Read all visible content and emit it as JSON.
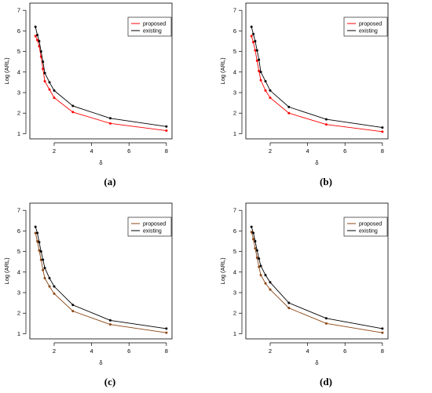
{
  "chart_data": [
    {
      "type": "line",
      "caption": "(a)",
      "xlabel": "δ",
      "ylabel": "Log (ARL)",
      "x_ticks": [
        2,
        4,
        6,
        8
      ],
      "y_ticks": [
        1,
        2,
        3,
        4,
        5,
        6,
        7
      ],
      "xlim": [
        0.7,
        8.3
      ],
      "ylim": [
        0.75,
        7.35
      ],
      "legend": "top-right",
      "series": [
        {
          "name": "proposed",
          "color": "#ff0000",
          "x": [
            1.0,
            1.1,
            1.2,
            1.3,
            1.4,
            1.5,
            1.75,
            2.0,
            3.0,
            5.0,
            8.0
          ],
          "y": [
            5.75,
            5.55,
            5.25,
            4.75,
            4.15,
            3.55,
            3.15,
            2.75,
            2.05,
            1.5,
            1.15
          ]
        },
        {
          "name": "existing",
          "color": "#000000",
          "x": [
            1.0,
            1.1,
            1.2,
            1.3,
            1.4,
            1.5,
            1.75,
            2.0,
            3.0,
            5.0,
            8.0
          ],
          "y": [
            6.2,
            5.8,
            5.5,
            5.0,
            4.5,
            3.95,
            3.5,
            3.1,
            2.35,
            1.75,
            1.35
          ]
        }
      ]
    },
    {
      "type": "line",
      "caption": "(b)",
      "xlabel": "δ",
      "ylabel": "Log (ARL)",
      "x_ticks": [
        2,
        4,
        6,
        8
      ],
      "y_ticks": [
        1,
        2,
        3,
        4,
        5,
        6,
        7
      ],
      "xlim": [
        0.7,
        8.3
      ],
      "ylim": [
        0.75,
        7.35
      ],
      "legend": "top-right",
      "series": [
        {
          "name": "proposed",
          "color": "#ff0000",
          "x": [
            1.0,
            1.1,
            1.2,
            1.3,
            1.4,
            1.5,
            1.75,
            2.0,
            3.0,
            5.0,
            8.0
          ],
          "y": [
            5.75,
            5.45,
            5.05,
            4.55,
            4.05,
            3.6,
            3.1,
            2.75,
            2.0,
            1.45,
            1.1
          ]
        },
        {
          "name": "existing",
          "color": "#000000",
          "x": [
            1.0,
            1.1,
            1.2,
            1.3,
            1.4,
            1.5,
            1.75,
            2.0,
            3.0,
            5.0,
            8.0
          ],
          "y": [
            6.2,
            5.85,
            5.5,
            5.05,
            4.6,
            4.0,
            3.55,
            3.1,
            2.3,
            1.7,
            1.3
          ]
        }
      ]
    },
    {
      "type": "line",
      "caption": "(c)",
      "xlabel": "δ",
      "ylabel": "Log (ARL)",
      "x_ticks": [
        2,
        4,
        6,
        8
      ],
      "y_ticks": [
        1,
        2,
        3,
        4,
        5,
        6,
        7
      ],
      "xlim": [
        0.7,
        8.3
      ],
      "ylim": [
        0.75,
        7.35
      ],
      "legend": "top-right",
      "series": [
        {
          "name": "proposed",
          "color": "#8b4513",
          "x": [
            1.0,
            1.1,
            1.2,
            1.3,
            1.4,
            1.5,
            1.75,
            2.0,
            3.0,
            5.0,
            8.0
          ],
          "y": [
            5.9,
            5.5,
            5.05,
            4.6,
            4.1,
            3.7,
            3.3,
            2.95,
            2.1,
            1.45,
            1.05
          ]
        },
        {
          "name": "existing",
          "color": "#000000",
          "x": [
            1.0,
            1.1,
            1.2,
            1.3,
            1.4,
            1.5,
            1.75,
            2.0,
            3.0,
            5.0,
            8.0
          ],
          "y": [
            6.2,
            5.9,
            5.45,
            5.0,
            4.6,
            4.2,
            3.7,
            3.3,
            2.4,
            1.65,
            1.25
          ]
        }
      ]
    },
    {
      "type": "line",
      "caption": "(d)",
      "xlabel": "δ",
      "ylabel": "Log (ARL)",
      "x_ticks": [
        2,
        4,
        6,
        8
      ],
      "y_ticks": [
        1,
        2,
        3,
        4,
        5,
        6,
        7
      ],
      "xlim": [
        0.7,
        8.3
      ],
      "ylim": [
        0.75,
        7.35
      ],
      "legend": "top-right",
      "series": [
        {
          "name": "proposed",
          "color": "#8b4513",
          "x": [
            1.0,
            1.1,
            1.2,
            1.3,
            1.4,
            1.5,
            1.75,
            2.0,
            3.0,
            5.0,
            8.0
          ],
          "y": [
            5.95,
            5.6,
            5.15,
            4.7,
            4.25,
            3.85,
            3.45,
            3.15,
            2.25,
            1.5,
            1.05
          ]
        },
        {
          "name": "existing",
          "color": "#000000",
          "x": [
            1.0,
            1.1,
            1.2,
            1.3,
            1.4,
            1.5,
            1.75,
            2.0,
            3.0,
            5.0,
            8.0
          ],
          "y": [
            6.2,
            5.9,
            5.5,
            5.05,
            4.65,
            4.3,
            3.85,
            3.5,
            2.5,
            1.75,
            1.25
          ]
        }
      ]
    }
  ]
}
